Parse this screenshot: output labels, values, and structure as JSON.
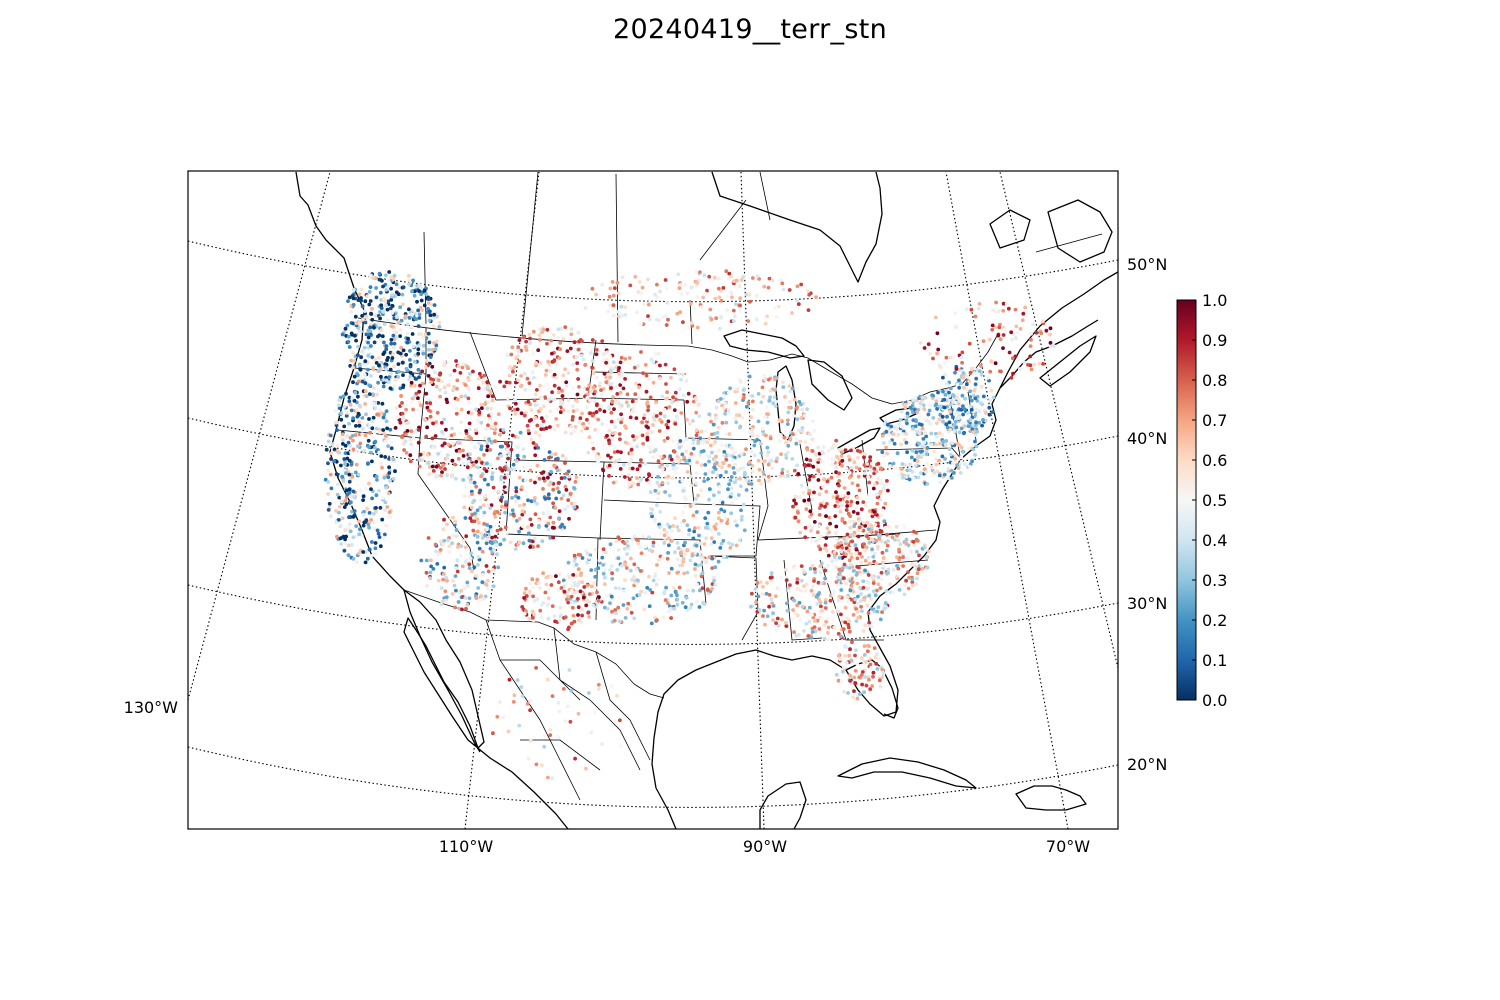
{
  "figure": {
    "title": "20240419__terr_stn"
  },
  "map": {
    "projection": "lambert-conformal",
    "region": "CONUS with southern Canada, northern Mexico and Caribbean",
    "coastline_color": "#000000",
    "graticule_style": "dotted",
    "meridian_labels": [
      "130°W",
      "110°W",
      "90°W",
      "70°W"
    ],
    "parallel_labels": [
      "50°N",
      "40°N",
      "30°N",
      "20°N"
    ],
    "marker": "small filled circle",
    "point_density": {
      "high_regions": [
        "Pacific Northwest",
        "California",
        "Rocky Mountains",
        "Great Plains",
        "Midwest",
        "Appalachians",
        "Northeast",
        "Southeast"
      ],
      "low_regions": [
        "Mexico",
        "Ocean",
        "Northern Canada",
        "Caribbean"
      ]
    }
  },
  "colorbar": {
    "colormap": "RdBu_r",
    "vmin": 0.0,
    "vmax": 1.0,
    "tick_labels": [
      "0.0",
      "0.1",
      "0.2",
      "0.3",
      "0.4",
      "0.5",
      "0.6",
      "0.7",
      "0.8",
      "0.9",
      "1.0"
    ],
    "colors": [
      "#053061",
      "#2166ac",
      "#4393c3",
      "#92c5de",
      "#d1e5f0",
      "#f7f7f7",
      "#fddbc7",
      "#f4a582",
      "#d6604d",
      "#b2182b",
      "#67001f"
    ]
  }
}
